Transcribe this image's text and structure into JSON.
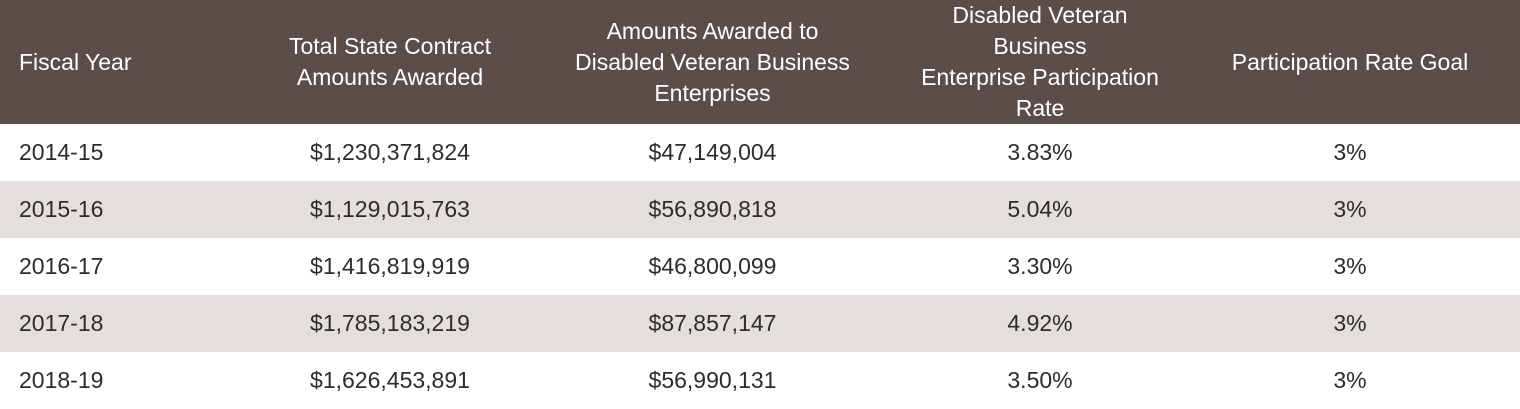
{
  "table": {
    "headers": [
      "Fiscal Year",
      "Total State Contract\nAmounts Awarded",
      "Amounts Awarded to\nDisabled Veteran Business\nEnterprises",
      "Disabled Veteran Business\nEnterprise Participation\nRate",
      "Participation Rate Goal"
    ],
    "rows": [
      [
        "2014-15",
        "$1,230,371,824",
        "$47,149,004",
        "3.83%",
        "3%"
      ],
      [
        "2015-16",
        "$1,129,015,763",
        "$56,890,818",
        "5.04%",
        "3%"
      ],
      [
        "2016-17",
        "$1,416,819,919",
        "$46,800,099",
        "3.30%",
        "3%"
      ],
      [
        "2017-18",
        "$1,785,183,219",
        "$87,857,147",
        "4.92%",
        "3%"
      ],
      [
        "2018-19",
        "$1,626,453,891",
        "$56,990,131",
        "3.50%",
        "3%"
      ]
    ],
    "colors": {
      "header_bg": "#5b4e4a",
      "header_text": "#ffffff",
      "row_alt_bg": "#e3dfdd",
      "row_bg": "#ffffff"
    }
  }
}
